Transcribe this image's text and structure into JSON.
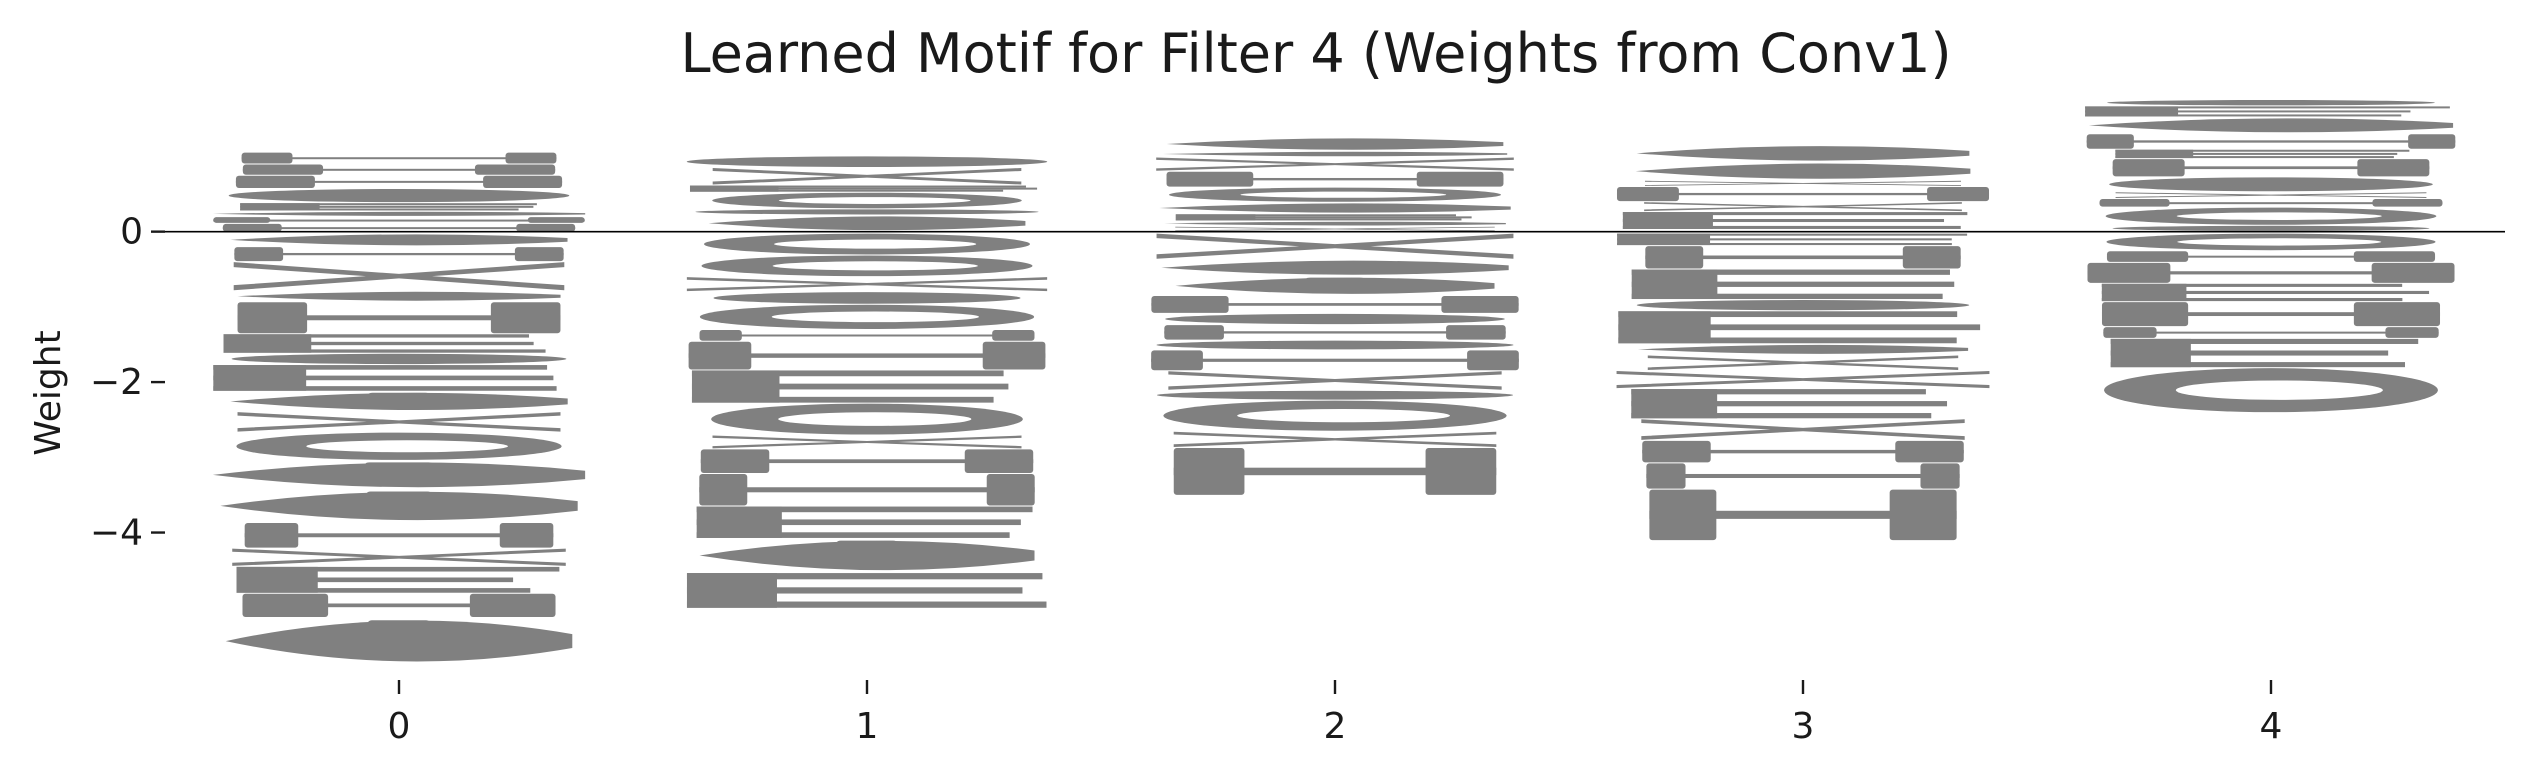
{
  "chart_data": {
    "type": "bar",
    "subtype": "stacked letter glyphs (sequence logo)",
    "title": "Learned Motif for Filter 4 (Weights from Conv1)",
    "xlabel": "",
    "ylabel": "Weight",
    "ylim": [
      -6.0,
      1.75
    ],
    "xlim": [
      -0.5,
      4.5
    ],
    "x_ticks": [
      0,
      1,
      2,
      3,
      4
    ],
    "y_ticks": [
      -4,
      -2,
      0
    ],
    "y_tick_labels": [
      "−4",
      "−2",
      "0"
    ],
    "grid": false,
    "zero_line": true,
    "glyph_color": "#808080",
    "positions": [
      {
        "x": 0,
        "top": 1.05,
        "bottom": -5.75
      },
      {
        "x": 1,
        "top": 1.0,
        "bottom": -5.0
      },
      {
        "x": 2,
        "top": 1.25,
        "bottom": -3.5
      },
      {
        "x": 3,
        "top": 1.15,
        "bottom": -4.1
      },
      {
        "x": 4,
        "top": 1.75,
        "bottom": -2.4
      }
    ]
  }
}
